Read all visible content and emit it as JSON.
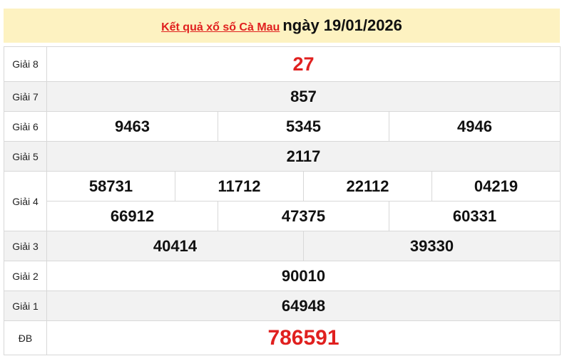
{
  "header": {
    "link_text": "Kết quả xổ số Cà Mau",
    "date_text": "ngày 19/01/2026"
  },
  "colors": {
    "header_bg": "#fdf2c1",
    "accent_red": "#e0201f",
    "alt_row": "#f2f2f2"
  },
  "prizes": {
    "g8": {
      "label": "Giải 8",
      "numbers": [
        "27"
      ]
    },
    "g7": {
      "label": "Giải 7",
      "numbers": [
        "857"
      ]
    },
    "g6": {
      "label": "Giải 6",
      "numbers": [
        "9463",
        "5345",
        "4946"
      ]
    },
    "g5": {
      "label": "Giải 5",
      "numbers": [
        "2117"
      ]
    },
    "g4": {
      "label": "Giải 4",
      "numbers": [
        "58731",
        "11712",
        "22112",
        "04219",
        "66912",
        "47375",
        "60331"
      ]
    },
    "g3": {
      "label": "Giải 3",
      "numbers": [
        "40414",
        "39330"
      ]
    },
    "g2": {
      "label": "Giải 2",
      "numbers": [
        "90010"
      ]
    },
    "g1": {
      "label": "Giải 1",
      "numbers": [
        "64948"
      ]
    },
    "db": {
      "label": "ĐB",
      "numbers": [
        "786591"
      ]
    }
  }
}
